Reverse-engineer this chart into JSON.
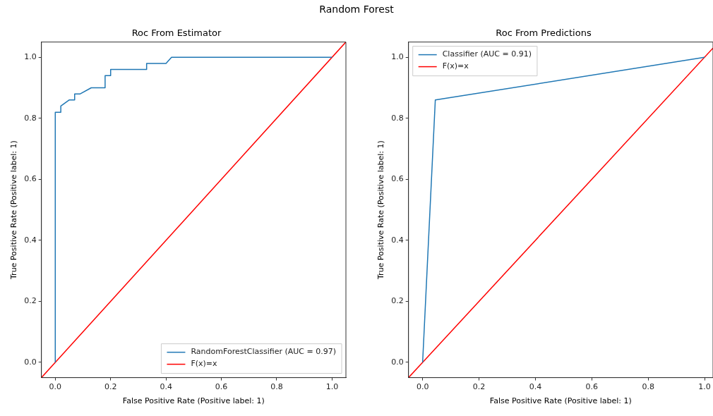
{
  "chart_data": [
    {
      "type": "line",
      "title": "Roc From Estimator",
      "xlabel": "False Positive Rate (Positive label: 1)",
      "ylabel": "True Positive Rate (Positive label: 1)",
      "annotations": [
        "Random Forest"
      ],
      "xlim": [
        -0.05,
        1.05
      ],
      "ylim": [
        -0.05,
        1.05
      ],
      "xticks": [
        {
          "value": 0,
          "label": "0.0"
        },
        {
          "value": 0.2,
          "label": "0.2"
        },
        {
          "value": 0.4,
          "label": "0.4"
        },
        {
          "value": 0.6,
          "label": "0.6"
        },
        {
          "value": 0.8,
          "label": "0.8"
        },
        {
          "value": 1,
          "label": "1.0"
        }
      ],
      "yticks": [
        {
          "value": 0,
          "label": "0.0"
        },
        {
          "value": 0.2,
          "label": "0.2"
        },
        {
          "value": 0.4,
          "label": "0.4"
        },
        {
          "value": 0.6,
          "label": "0.6"
        },
        {
          "value": 0.8,
          "label": "0.8"
        },
        {
          "value": 1,
          "label": "1.0"
        }
      ],
      "legend": "bottom right",
      "grid": false,
      "marker": "none",
      "series": [
        {
          "name": "RandomForestClassifier (AUC = 0.97)",
          "color": "#1f77b4",
          "x": [
            0,
            0,
            0.02,
            0.02,
            0.05,
            0.07,
            0.07,
            0.09,
            0.13,
            0.18,
            0.18,
            0.2,
            0.2,
            0.33,
            0.33,
            0.4,
            0.42,
            1
          ],
          "values": [
            0,
            0.82,
            0.82,
            0.84,
            0.86,
            0.86,
            0.88,
            0.88,
            0.9,
            0.9,
            0.94,
            0.94,
            0.96,
            0.96,
            0.98,
            0.98,
            1,
            1
          ]
        },
        {
          "name": "F(x)=x",
          "color": "#ff0000",
          "x": [
            -0.05,
            1.05
          ],
          "values": [
            -0.05,
            1.05
          ]
        }
      ]
    },
    {
      "type": "line",
      "title": "Roc From Predictions",
      "xlabel": "False Positive Rate (Positive label: 1)",
      "ylabel": "True Positive Rate (Positive label: 1)",
      "xlim": [
        -0.05,
        1.03
      ],
      "ylim": [
        -0.05,
        1.05
      ],
      "xticks": [
        {
          "value": 0,
          "label": "0.0"
        },
        {
          "value": 0.2,
          "label": "0.2"
        },
        {
          "value": 0.4,
          "label": "0.4"
        },
        {
          "value": 0.6,
          "label": "0.6"
        },
        {
          "value": 0.8,
          "label": "0.8"
        },
        {
          "value": 1,
          "label": "1.0"
        }
      ],
      "yticks": [
        {
          "value": 0,
          "label": "0.0"
        },
        {
          "value": 0.2,
          "label": "0.2"
        },
        {
          "value": 0.4,
          "label": "0.4"
        },
        {
          "value": 0.6,
          "label": "0.6"
        },
        {
          "value": 0.8,
          "label": "0.8"
        },
        {
          "value": 1,
          "label": "1.0"
        }
      ],
      "legend": "top left",
      "grid": false,
      "marker": "none",
      "series": [
        {
          "name": "Classifier (AUC = 0.91)",
          "color": "#1f77b4",
          "x": [
            0,
            0.045,
            1
          ],
          "values": [
            0,
            0.86,
            1
          ]
        },
        {
          "name": "F(x)=x",
          "color": "#ff0000",
          "x": [
            -0.05,
            1.03
          ],
          "values": [
            -0.05,
            1.03
          ]
        }
      ]
    }
  ]
}
